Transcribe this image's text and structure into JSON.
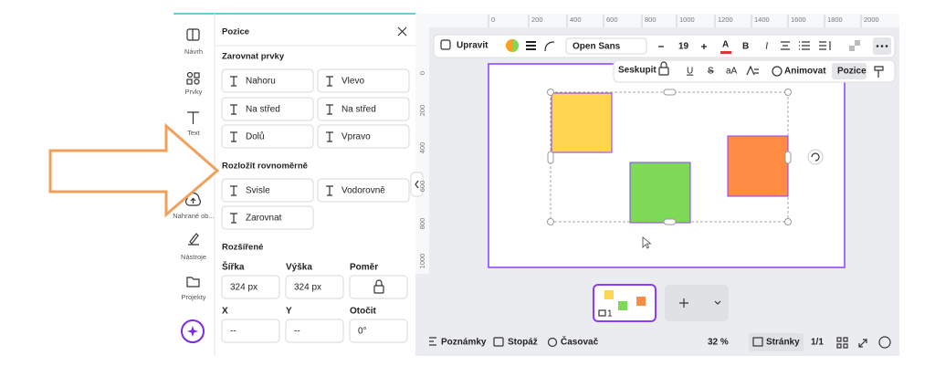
{
  "sidebar": {
    "items": [
      "Návrh",
      "Prvky",
      "Text",
      "Nahrané ob...",
      "Nástroje",
      "Projekty"
    ]
  },
  "panel": {
    "title": "Pozice",
    "align_heading": "Zarovnat prvky",
    "align_buttons": [
      "Nahoru",
      "Vlevo",
      "Na střed",
      "Na střed",
      "Dolů",
      "Vpravo"
    ],
    "distribute_heading": "Rozložit rovnoměrně",
    "distribute_buttons": [
      "Svisle",
      "Vodorovně",
      "Zarovnat"
    ],
    "advanced_heading": "Rozšířené",
    "fields": [
      {
        "label": "Šířka",
        "value": "324 px"
      },
      {
        "label": "Výška",
        "value": "324 px"
      },
      {
        "label": "Poměr"
      },
      {
        "label": "X",
        "value": "--"
      },
      {
        "label": "Y",
        "value": "--"
      },
      {
        "label": "Otočit",
        "value": "0°"
      }
    ]
  },
  "ruler": {
    "top": [
      "0",
      "200",
      "400",
      "600",
      "800",
      "1000",
      "1200",
      "1400",
      "1600",
      "1800",
      "2000"
    ],
    "left": [
      "0",
      "200",
      "400",
      "600",
      "800",
      "1000"
    ]
  },
  "toolbar": {
    "edit": "Upravit",
    "font": "Open Sans",
    "font_size": "19",
    "text_color": "A",
    "bold": "B",
    "italic": "I"
  },
  "toolbar2": {
    "group": "Seskupit",
    "underline": "U",
    "strike": "S",
    "case": "aA",
    "animate": "Animovat",
    "position": "Pozice"
  },
  "pages": {
    "thumbnail_label": "1"
  },
  "footer": {
    "notes": "Poznámky",
    "timing": "Stopáž",
    "timer": "Časovač",
    "zoom": "32 %",
    "pages": "Stránky",
    "page_count": "1/1"
  }
}
